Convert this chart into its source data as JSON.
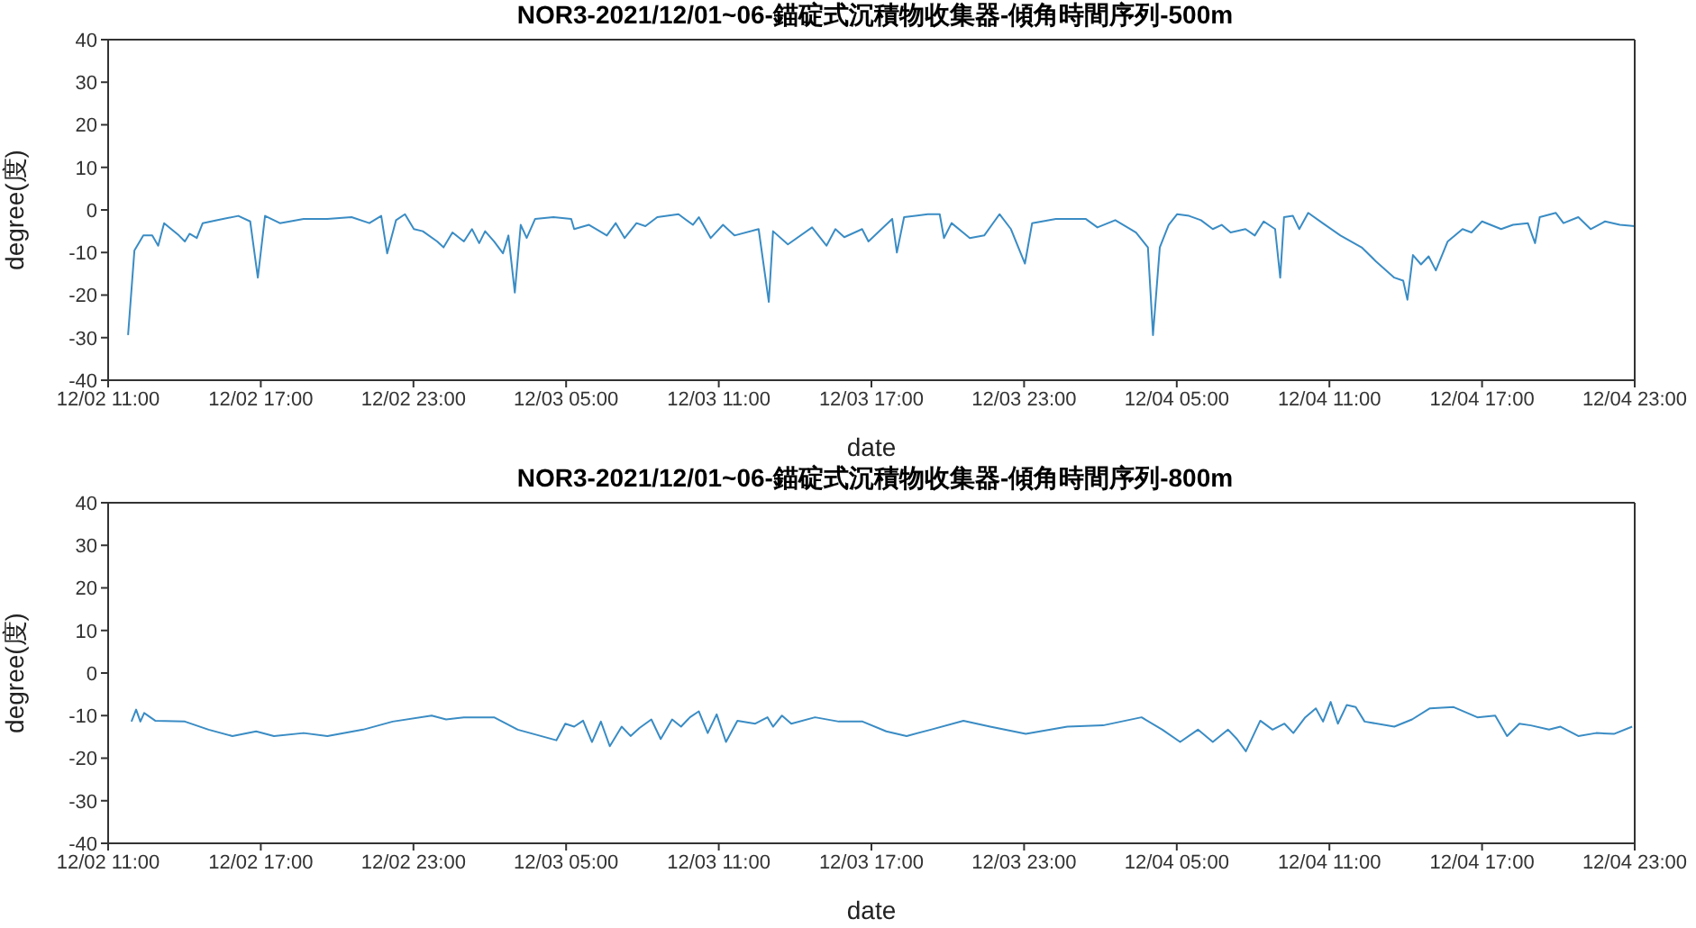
{
  "chart_data": [
    {
      "type": "line",
      "title": "NOR3-2021/12/01~06-錨碇式沉積物收集器-傾角時間序列-500m",
      "xlabel": "date",
      "ylabel": "degree(度)",
      "color": "#3a8cc4",
      "xlim": [
        "--12-02T11:00",
        "--12-04T23:00"
      ],
      "ylim": [
        -40,
        40
      ],
      "xticks": [
        {
          "value": "--12-02T11:00",
          "label": "12/02 11:00"
        },
        {
          "value": "--12-02T17:00",
          "label": "12/02 17:00"
        },
        {
          "value": "--12-02T23:00",
          "label": "12/02 23:00"
        },
        {
          "value": "--12-03T05:00",
          "label": "12/03 05:00"
        },
        {
          "value": "--12-03T11:00",
          "label": "12/03 11:00"
        },
        {
          "value": "--12-03T17:00",
          "label": "12/03 17:00"
        },
        {
          "value": "--12-03T23:00",
          "label": "12/03 23:00"
        },
        {
          "value": "--12-04T05:00",
          "label": "12/04 05:00"
        },
        {
          "value": "--12-04T11:00",
          "label": "12/04 11:00"
        },
        {
          "value": "--12-04T17:00",
          "label": "12/04 17:00"
        },
        {
          "value": "--12-04T23:00",
          "label": "12/04 23:00"
        }
      ],
      "yticks": [
        -40,
        -30,
        -20,
        -10,
        0,
        10,
        20,
        30,
        40
      ],
      "x": [
        "--12-02T11:47",
        "--12-02T12:02",
        "--12-02T12:23",
        "--12-02T12:44",
        "--12-02T12:58",
        "--12-02T13:12",
        "--12-02T13:47",
        "--12-02T14:01",
        "--12-02T14:12",
        "--12-02T14:29",
        "--12-02T14:43",
        "--12-02T15:18",
        "--12-02T16:07",
        "--12-02T16:35",
        "--12-02T16:53",
        "--12-02T17:10",
        "--12-02T17:45",
        "--12-02T18:41",
        "--12-02T19:37",
        "--12-02T20:34",
        "--12-02T21:16",
        "--12-02T21:44",
        "--12-02T21:58",
        "--12-02T22:19",
        "--12-02T22:40",
        "--12-02T23:01",
        "--12-02T23:22",
        "--12-02T23:56",
        "--12-03T00:11",
        "--12-03T00:32",
        "--12-03T00:59",
        "--12-03T01:18",
        "--12-03T01:35",
        "--12-03T01:49",
        "--12-03T02:10",
        "--12-03T02:31",
        "--12-03T02:44",
        "--12-03T02:59",
        "--12-03T03:13",
        "--12-03T03:27",
        "--12-03T03:47",
        "--12-03T04:30",
        "--12-03T05:12",
        "--12-03T05:19",
        "--12-03T05:54",
        "--12-03T06:36",
        "--12-03T06:57",
        "--12-03T07:18",
        "--12-03T07:46",
        "--12-03T08:07",
        "--12-03T08:35",
        "--12-03T09:25",
        "--12-03T09:59",
        "--12-03T10:13",
        "--12-03T10:41",
        "--12-03T11:10",
        "--12-03T11:37",
        "--12-03T12:34",
        "--12-03T12:58",
        "--12-03T13:08",
        "--12-03T13:43",
        "--12-03T14:40",
        "--12-03T15:14",
        "--12-03T15:35",
        "--12-03T15:56",
        "--12-03T16:38",
        "--12-03T16:53",
        "--12-03T17:49",
        "--12-03T18:00",
        "--12-03T18:17",
        "--12-03T19:13",
        "--12-03T19:41",
        "--12-03T19:51",
        "--12-03T20:09",
        "--12-03T20:52",
        "--12-03T21:26",
        "--12-03T22:02",
        "--12-03T22:29",
        "--12-03T23:02",
        "--12-03T23:19",
        "--12-04T00:15",
        "--12-04T01:25",
        "--12-04T01:53",
        "--12-04T02:35",
        "--12-04T03:24",
        "--12-04T03:52",
        "--12-04T04:04",
        "--12-04T04:20",
        "--12-04T04:41",
        "--12-04T05:01",
        "--12-04T05:29",
        "--12-04T05:57",
        "--12-04T06:25",
        "--12-04T06:46",
        "--12-04T07:07",
        "--12-04T07:42",
        "--12-04T08:04",
        "--12-04T08:25",
        "--12-04T08:52",
        "--12-04T09:04",
        "--12-04T09:13",
        "--12-04T09:34",
        "--12-04T09:49",
        "--12-04T10:10",
        "--12-04T10:44",
        "--12-04T11:26",
        "--12-04T12:16",
        "--12-04T12:50",
        "--12-04T13:33",
        "--12-04T13:54",
        "--12-04T14:04",
        "--12-04T14:17",
        "--12-04T14:36",
        "--12-04T14:54",
        "--12-04T15:11",
        "--12-04T15:39",
        "--12-04T16:14",
        "--12-04T16:35",
        "--12-04T17:00",
        "--12-04T17:45",
        "--12-04T18:13",
        "--12-04T18:48",
        "--12-04T19:05",
        "--12-04T19:16",
        "--12-04T19:54",
        "--12-04T20:12",
        "--12-04T20:47",
        "--12-04T21:16",
        "--12-04T21:50",
        "--12-04T22:25",
        "--12-04T23:00"
      ],
      "values": [
        -29.4,
        -9.5,
        -6.0,
        -6.0,
        -8.4,
        -3.1,
        -6.0,
        -7.4,
        -5.6,
        -6.6,
        -3.1,
        -2.4,
        -1.4,
        -2.7,
        -15.9,
        -1.4,
        -3.1,
        -2.1,
        -2.1,
        -1.7,
        -3.1,
        -1.4,
        -10.2,
        -2.4,
        -1.0,
        -4.5,
        -5.0,
        -7.4,
        -8.8,
        -5.3,
        -7.4,
        -4.5,
        -7.8,
        -5.0,
        -7.4,
        -10.2,
        -6.0,
        -19.4,
        -3.5,
        -6.6,
        -2.1,
        -1.7,
        -2.1,
        -4.5,
        -3.5,
        -6.0,
        -3.1,
        -6.6,
        -3.1,
        -3.8,
        -1.7,
        -1.0,
        -3.5,
        -1.7,
        -6.6,
        -3.5,
        -6.0,
        -4.5,
        -21.6,
        -5.0,
        -8.1,
        -4.1,
        -8.4,
        -4.5,
        -6.4,
        -4.5,
        -7.4,
        -2.1,
        -10.0,
        -1.7,
        -1.0,
        -1.0,
        -6.6,
        -3.1,
        -6.6,
        -6.0,
        -1.0,
        -4.5,
        -12.6,
        -3.1,
        -2.1,
        -2.1,
        -4.1,
        -2.4,
        -5.3,
        -8.8,
        -29.4,
        -8.8,
        -3.5,
        -1.0,
        -1.4,
        -2.4,
        -4.5,
        -3.5,
        -5.3,
        -4.5,
        -6.0,
        -2.7,
        -4.5,
        -15.9,
        -1.7,
        -1.4,
        -4.5,
        -0.7,
        -3.1,
        -6.0,
        -8.8,
        -12.1,
        -15.9,
        -16.6,
        -21.1,
        -10.6,
        -12.8,
        -10.9,
        -14.2,
        -7.4,
        -4.5,
        -5.3,
        -2.7,
        -4.5,
        -3.5,
        -3.1,
        -7.8,
        -1.7,
        -0.7,
        -3.1,
        -1.7,
        -4.5,
        -2.7,
        -3.5,
        -3.8
      ]
    },
    {
      "type": "line",
      "title": "NOR3-2021/12/01~06-錨碇式沉積物收集器-傾角時間序列-800m",
      "xlabel": "date",
      "ylabel": "degree(度)",
      "color": "#3a8cc4",
      "xlim": [
        "--12-02T11:00",
        "--12-04T23:00"
      ],
      "ylim": [
        -40,
        40
      ],
      "xticks": [
        {
          "value": "--12-02T11:00",
          "label": "12/02 11:00"
        },
        {
          "value": "--12-02T17:00",
          "label": "12/02 17:00"
        },
        {
          "value": "--12-02T23:00",
          "label": "12/02 23:00"
        },
        {
          "value": "--12-03T05:00",
          "label": "12/03 05:00"
        },
        {
          "value": "--12-03T11:00",
          "label": "12/03 11:00"
        },
        {
          "value": "--12-03T17:00",
          "label": "12/03 17:00"
        },
        {
          "value": "--12-03T23:00",
          "label": "12/03 23:00"
        },
        {
          "value": "--12-04T05:00",
          "label": "12/04 05:00"
        },
        {
          "value": "--12-04T11:00",
          "label": "12/04 11:00"
        },
        {
          "value": "--12-04T17:00",
          "label": "12/04 17:00"
        },
        {
          "value": "--12-04T23:00",
          "label": "12/04 23:00"
        }
      ],
      "yticks": [
        -40,
        -30,
        -20,
        -10,
        0,
        10,
        20,
        30,
        40
      ],
      "x": [
        "--12-02T11:55",
        "--12-02T12:06",
        "--12-02T12:16",
        "--12-02T12:25",
        "--12-02T12:51",
        "--12-02T14:01",
        "--12-02T14:57",
        "--12-02T15:53",
        "--12-02T16:49",
        "--12-02T17:31",
        "--12-02T18:41",
        "--12-02T19:37",
        "--12-02T21:01",
        "--12-02T22:11",
        "--12-02T23:43",
        "--12-03T00:17",
        "--12-03T00:59",
        "--12-03T02:10",
        "--12-03T03:06",
        "--12-03T04:37",
        "--12-03T04:58",
        "--12-03T05:19",
        "--12-03T05:40",
        "--12-03T06:01",
        "--12-03T06:22",
        "--12-03T06:43",
        "--12-03T07:11",
        "--12-03T07:32",
        "--12-03T07:53",
        "--12-03T08:21",
        "--12-03T08:43",
        "--12-03T09:10",
        "--12-03T09:31",
        "--12-03T09:52",
        "--12-03T10:13",
        "--12-03T10:34",
        "--12-03T10:55",
        "--12-03T11:17",
        "--12-03T11:44",
        "--12-03T12:26",
        "--12-03T12:55",
        "--12-03T13:08",
        "--12-03T13:29",
        "--12-03T13:51",
        "--12-03T14:47",
        "--12-03T15:43",
        "--12-03T16:39",
        "--12-03T17:35",
        "--12-03T18:23",
        "--12-03T19:20",
        "--12-03T20:37",
        "--12-03T21:40",
        "--12-03T23:04",
        "--12-04T00:42",
        "--12-04T02:06",
        "--12-04T03:37",
        "--12-04T04:26",
        "--12-04T05:08",
        "--12-04T05:50",
        "--12-04T06:25",
        "--12-04T07:01",
        "--12-04T07:22",
        "--12-04T07:43",
        "--12-04T08:17",
        "--12-04T08:46",
        "--12-04T09:14",
        "--12-04T09:35",
        "--12-04T10:03",
        "--12-04T10:28",
        "--12-04T10:45",
        "--12-04T11:03",
        "--12-04T11:20",
        "--12-04T11:41",
        "--12-04T12:02",
        "--12-04T12:23",
        "--12-04T13:33",
        "--12-04T14:15",
        "--12-04T14:57",
        "--12-04T15:53",
        "--12-04T16:49",
        "--12-04T17:31",
        "--12-04T17:59",
        "--12-04T18:28",
        "--12-04T18:55",
        "--12-04T19:38",
        "--12-04T20:05",
        "--12-04T20:47",
        "--12-04T21:29",
        "--12-04T22:11",
        "--12-04T22:54"
      ],
      "values": [
        -11.4,
        -8.6,
        -11.4,
        -9.4,
        -11.2,
        -11.4,
        -13.3,
        -14.8,
        -13.7,
        -14.8,
        -14.1,
        -14.8,
        -13.3,
        -11.4,
        -10.0,
        -10.9,
        -10.4,
        -10.4,
        -13.3,
        -15.8,
        -11.9,
        -12.6,
        -11.2,
        -16.2,
        -11.4,
        -17.2,
        -12.6,
        -14.8,
        -12.9,
        -10.9,
        -15.5,
        -10.9,
        -12.6,
        -10.4,
        -9.0,
        -14.1,
        -9.7,
        -16.2,
        -11.2,
        -11.9,
        -10.4,
        -12.6,
        -10.0,
        -11.9,
        -10.4,
        -11.4,
        -11.4,
        -13.7,
        -14.8,
        -13.3,
        -11.2,
        -12.6,
        -14.3,
        -12.6,
        -12.3,
        -10.4,
        -13.3,
        -16.2,
        -13.3,
        -16.2,
        -13.3,
        -15.5,
        -18.4,
        -11.2,
        -13.3,
        -11.9,
        -14.1,
        -10.4,
        -8.3,
        -11.4,
        -6.8,
        -11.9,
        -7.5,
        -8.0,
        -11.4,
        -12.6,
        -10.9,
        -8.3,
        -8.0,
        -10.4,
        -10.0,
        -14.8,
        -11.9,
        -12.3,
        -13.3,
        -12.6,
        -14.8,
        -14.1,
        -14.3,
        -12.6
      ]
    }
  ]
}
